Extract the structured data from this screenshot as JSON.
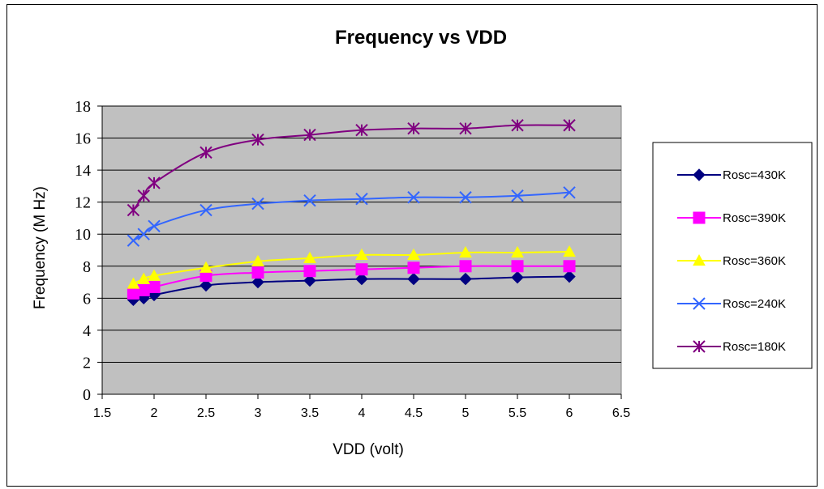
{
  "chart_data": {
    "type": "line",
    "title": "Frequency  vs  VDD",
    "xlabel": "VDD (volt)",
    "ylabel": "Frequency (M Hz)",
    "xlim": [
      1.5,
      6.5
    ],
    "ylim": [
      0,
      18
    ],
    "xticks": [
      "1.5",
      "2",
      "2.5",
      "3",
      "3.5",
      "4",
      "4.5",
      "5",
      "5.5",
      "6",
      "6.5"
    ],
    "yticks": [
      "0",
      "2",
      "4",
      "6",
      "8",
      "10",
      "12",
      "14",
      "16",
      "18"
    ],
    "grid": "horizontal",
    "plot_background": "#c0c0c0",
    "legend_position": "right",
    "x": [
      1.8,
      1.9,
      2.0,
      2.5,
      3.0,
      3.5,
      4.0,
      4.5,
      5.0,
      5.5,
      6.0
    ],
    "series": [
      {
        "name": "Rosc=430K",
        "color": "#000080",
        "marker": "diamond",
        "values": [
          5.9,
          6.0,
          6.2,
          6.8,
          7.0,
          7.1,
          7.2,
          7.2,
          7.2,
          7.3,
          7.35
        ]
      },
      {
        "name": "Rosc=390K",
        "color": "#ff00ff",
        "marker": "square",
        "values": [
          6.3,
          6.5,
          6.7,
          7.4,
          7.6,
          7.7,
          7.8,
          7.9,
          8.0,
          8.0,
          8.0
        ]
      },
      {
        "name": "Rosc=360K",
        "color": "#ffff00",
        "marker": "triangle",
        "values": [
          6.9,
          7.2,
          7.4,
          7.9,
          8.3,
          8.5,
          8.7,
          8.7,
          8.85,
          8.85,
          8.9
        ]
      },
      {
        "name": "Rosc=240K",
        "color": "#3366ff",
        "marker": "x",
        "values": [
          9.6,
          10.0,
          10.5,
          11.5,
          11.9,
          12.1,
          12.2,
          12.3,
          12.3,
          12.4,
          12.6
        ]
      },
      {
        "name": "Rosc=180K",
        "color": "#800080",
        "marker": "asterisk",
        "values": [
          11.5,
          12.4,
          13.2,
          15.1,
          15.9,
          16.2,
          16.5,
          16.6,
          16.6,
          16.8,
          16.8
        ]
      }
    ]
  }
}
